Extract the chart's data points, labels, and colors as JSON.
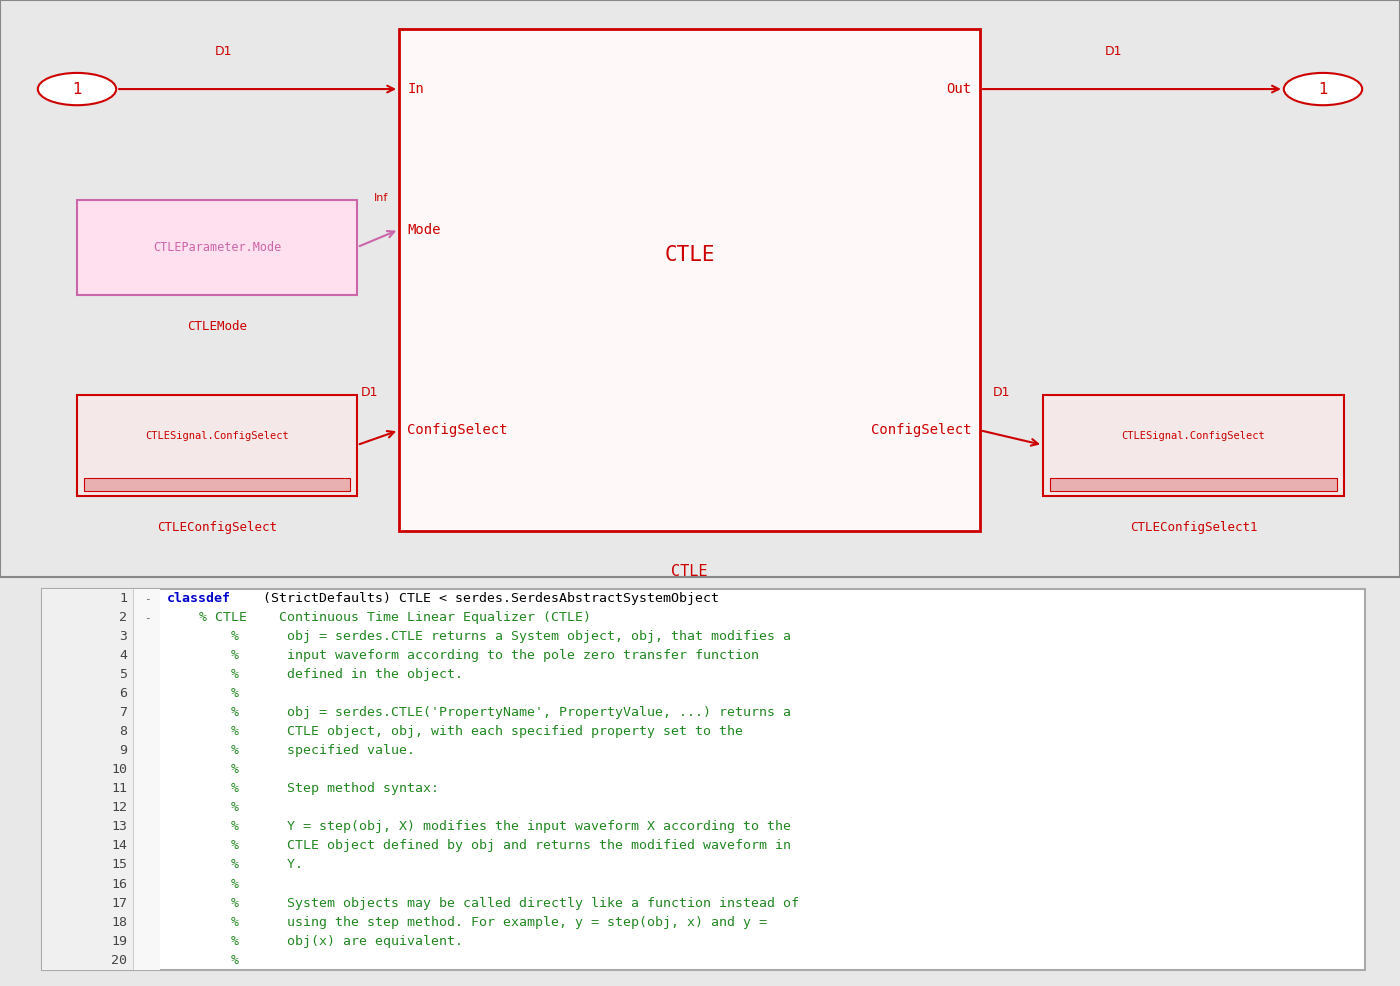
{
  "colors": {
    "red": "#cc0000",
    "pink_fill": "#ffe0ee",
    "pink_border": "#cc66aa",
    "dark_red_fill": "#f5e8e8",
    "dark_red_border": "#cc0000",
    "blue": "#0000cc",
    "green": "#228822",
    "black": "#000000",
    "code_bg": "#ffffff",
    "linenum_bg": "#f0f0f0",
    "panel_border": "#aaaaaa",
    "top_bg": "#ffffff"
  },
  "code_lines": [
    {
      "num": "1",
      "collapse": "-",
      "parts": [
        [
          "classdef",
          "blue"
        ],
        [
          " (StrictDefaults) CTLE < serdes.SerdesAbstractSystemObject",
          "black"
        ]
      ]
    },
    {
      "num": "2",
      "collapse": "-",
      "parts": [
        [
          "    % CTLE    Continuous Time Linear Equalizer (CTLE)",
          "green"
        ]
      ]
    },
    {
      "num": "3",
      "collapse": "",
      "parts": [
        [
          "        %      obj = serdes.CTLE returns a System object, obj, that modifies a",
          "green"
        ]
      ]
    },
    {
      "num": "4",
      "collapse": "",
      "parts": [
        [
          "        %      input waveform according to the pole zero transfer function",
          "green"
        ]
      ]
    },
    {
      "num": "5",
      "collapse": "",
      "parts": [
        [
          "        %      defined in the object.",
          "green"
        ]
      ]
    },
    {
      "num": "6",
      "collapse": "",
      "parts": [
        [
          "        %",
          "green"
        ]
      ]
    },
    {
      "num": "7",
      "collapse": "",
      "parts": [
        [
          "        %      obj = serdes.CTLE('PropertyName', PropertyValue, ...) returns a",
          "green"
        ]
      ]
    },
    {
      "num": "8",
      "collapse": "",
      "parts": [
        [
          "        %      CTLE object, obj, with each specified property set to the",
          "green"
        ]
      ]
    },
    {
      "num": "9",
      "collapse": "",
      "parts": [
        [
          "        %      specified value.",
          "green"
        ]
      ]
    },
    {
      "num": "10",
      "collapse": "",
      "parts": [
        [
          "        %",
          "green"
        ]
      ]
    },
    {
      "num": "11",
      "collapse": "",
      "parts": [
        [
          "        %      Step method syntax:",
          "green"
        ]
      ]
    },
    {
      "num": "12",
      "collapse": "",
      "parts": [
        [
          "        %",
          "green"
        ]
      ]
    },
    {
      "num": "13",
      "collapse": "",
      "parts": [
        [
          "        %      Y = step(obj, X) modifies the input waveform X according to the",
          "green"
        ]
      ]
    },
    {
      "num": "14",
      "collapse": "",
      "parts": [
        [
          "        %      CTLE object defined by obj and returns the modified waveform in",
          "green"
        ]
      ]
    },
    {
      "num": "15",
      "collapse": "",
      "parts": [
        [
          "        %      Y.",
          "green"
        ]
      ]
    },
    {
      "num": "16",
      "collapse": "",
      "parts": [
        [
          "        %",
          "green"
        ]
      ]
    },
    {
      "num": "17",
      "collapse": "",
      "parts": [
        [
          "        %      System objects may be called directly like a function instead of",
          "green"
        ]
      ]
    },
    {
      "num": "18",
      "collapse": "",
      "parts": [
        [
          "        %      using the step method. For example, y = step(obj, x) and y =",
          "green"
        ]
      ]
    },
    {
      "num": "19",
      "collapse": "",
      "parts": [
        [
          "        %      obj(x) are equivalent.",
          "green"
        ]
      ]
    },
    {
      "num": "20",
      "collapse": "",
      "parts": [
        [
          "        %",
          "green"
        ]
      ]
    }
  ]
}
